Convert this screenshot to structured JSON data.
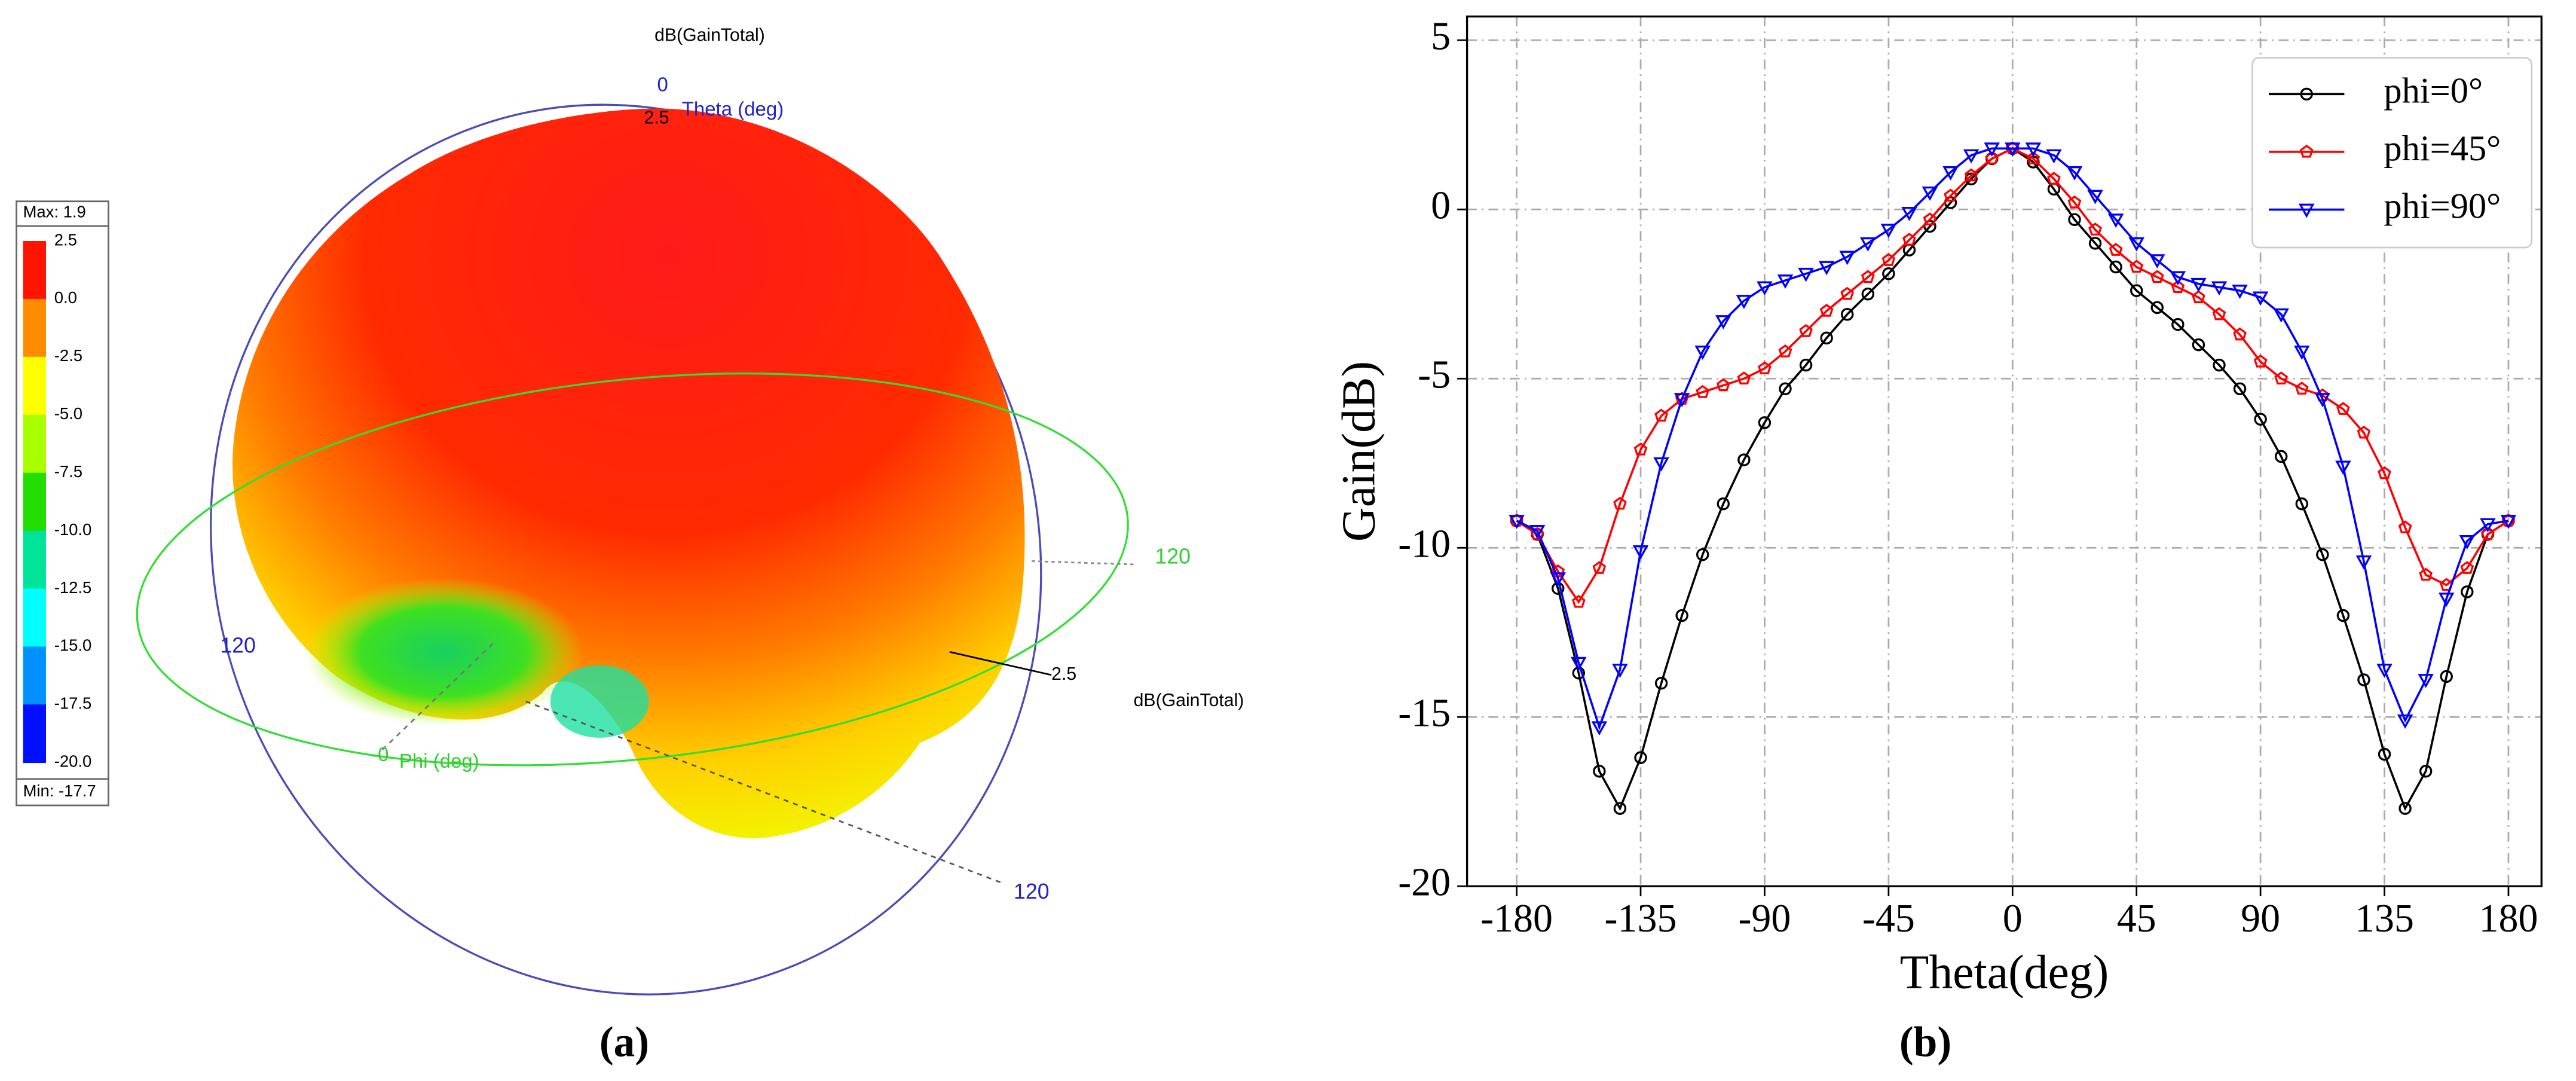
{
  "figure_a": {
    "title": "dB(GainTotal)",
    "max_label": "Max: 1.9",
    "min_label": "Min: -17.7",
    "colorbar": {
      "labels": [
        "2.5",
        "0.0",
        "-2.5",
        "-5.0",
        "-7.5",
        "-10.0",
        "-12.5",
        "-15.0",
        "-17.5",
        "-20.0"
      ],
      "colors": [
        "#ff1400",
        "#ff8c00",
        "#ffff00",
        "#a8ff00",
        "#22dd00",
        "#00e49a",
        "#00ffff",
        "#0090ff",
        "#0010ff"
      ]
    },
    "theta_zero": "0",
    "theta_axis": "Theta (deg)",
    "theta_ring_top": "2.5",
    "phi_ring_right": "120",
    "theta_ring_left": "120",
    "radial_tick": "2.5",
    "radial_label": "dB(GainTotal)",
    "phi_zero": "-0",
    "phi_axis": "Phi (deg)",
    "theta_ring_bottom": "120",
    "caption": "(a)"
  },
  "chart_data": {
    "type": "line",
    "caption": "(b)",
    "xlabel": "Theta(deg)",
    "ylabel": "Gain(dB)",
    "xlim": [
      -198,
      192
    ],
    "ylim": [
      -20,
      5.7
    ],
    "xticks": [
      -180,
      -135,
      -90,
      -45,
      0,
      45,
      90,
      135,
      180
    ],
    "yticks": [
      5,
      0,
      -5,
      -10,
      -15,
      -20
    ],
    "grid": true,
    "legend": "upper right",
    "x": [
      -180,
      -172.5,
      -165,
      -157.5,
      -150,
      -142.5,
      -135,
      -127.5,
      -120,
      -112.5,
      -105,
      -97.5,
      -90,
      -82.5,
      -75,
      -67.5,
      -60,
      -52.5,
      -45,
      -37.5,
      -30,
      -22.5,
      -15,
      -7.5,
      0,
      7.5,
      15,
      22.5,
      30,
      37.5,
      45,
      52.5,
      60,
      67.5,
      75,
      82.5,
      90,
      97.5,
      105,
      112.5,
      120,
      127.5,
      135,
      142.5,
      150,
      157.5,
      165,
      172.5,
      180
    ],
    "series": [
      {
        "name": "phi=0°",
        "color": "#000000",
        "marker": "circle",
        "values": [
          -9.2,
          -9.6,
          -11.2,
          -13.7,
          -16.6,
          -17.7,
          -16.2,
          -14.0,
          -12.0,
          -10.2,
          -8.7,
          -7.4,
          -6.3,
          -5.3,
          -4.6,
          -3.8,
          -3.1,
          -2.5,
          -1.9,
          -1.2,
          -0.5,
          0.2,
          0.9,
          1.5,
          1.8,
          1.4,
          0.6,
          -0.3,
          -1.0,
          -1.7,
          -2.4,
          -2.9,
          -3.4,
          -4.0,
          -4.6,
          -5.3,
          -6.2,
          -7.3,
          -8.7,
          -10.2,
          -12.0,
          -13.9,
          -16.1,
          -17.7,
          -16.6,
          -13.8,
          -11.3,
          -9.6,
          -9.2
        ]
      },
      {
        "name": "phi=45°",
        "color": "#ff0000",
        "marker": "pentagon",
        "values": [
          -9.2,
          -9.6,
          -10.7,
          -11.6,
          -10.6,
          -8.7,
          -7.1,
          -6.1,
          -5.6,
          -5.4,
          -5.2,
          -5.0,
          -4.7,
          -4.2,
          -3.6,
          -3.0,
          -2.5,
          -2.0,
          -1.5,
          -0.9,
          -0.3,
          0.4,
          1.0,
          1.5,
          1.8,
          1.5,
          0.9,
          0.2,
          -0.6,
          -1.2,
          -1.7,
          -2.0,
          -2.3,
          -2.6,
          -3.1,
          -3.7,
          -4.5,
          -5.0,
          -5.3,
          -5.5,
          -5.9,
          -6.6,
          -7.8,
          -9.4,
          -10.8,
          -11.1,
          -10.6,
          -9.6,
          -9.2
        ]
      },
      {
        "name": "phi=90°",
        "color": "#0000ff",
        "marker": "triangle-down",
        "values": [
          -9.2,
          -9.5,
          -10.9,
          -13.4,
          -15.3,
          -13.6,
          -10.1,
          -7.5,
          -5.6,
          -4.2,
          -3.3,
          -2.7,
          -2.3,
          -2.1,
          -1.9,
          -1.7,
          -1.4,
          -1.0,
          -0.6,
          -0.1,
          0.5,
          1.1,
          1.6,
          1.8,
          1.8,
          1.8,
          1.6,
          1.1,
          0.4,
          -0.3,
          -1.0,
          -1.5,
          -2.0,
          -2.2,
          -2.3,
          -2.4,
          -2.6,
          -3.1,
          -4.2,
          -5.6,
          -7.6,
          -10.4,
          -13.6,
          -15.1,
          -13.9,
          -11.5,
          -9.8,
          -9.3,
          -9.2
        ]
      }
    ]
  }
}
